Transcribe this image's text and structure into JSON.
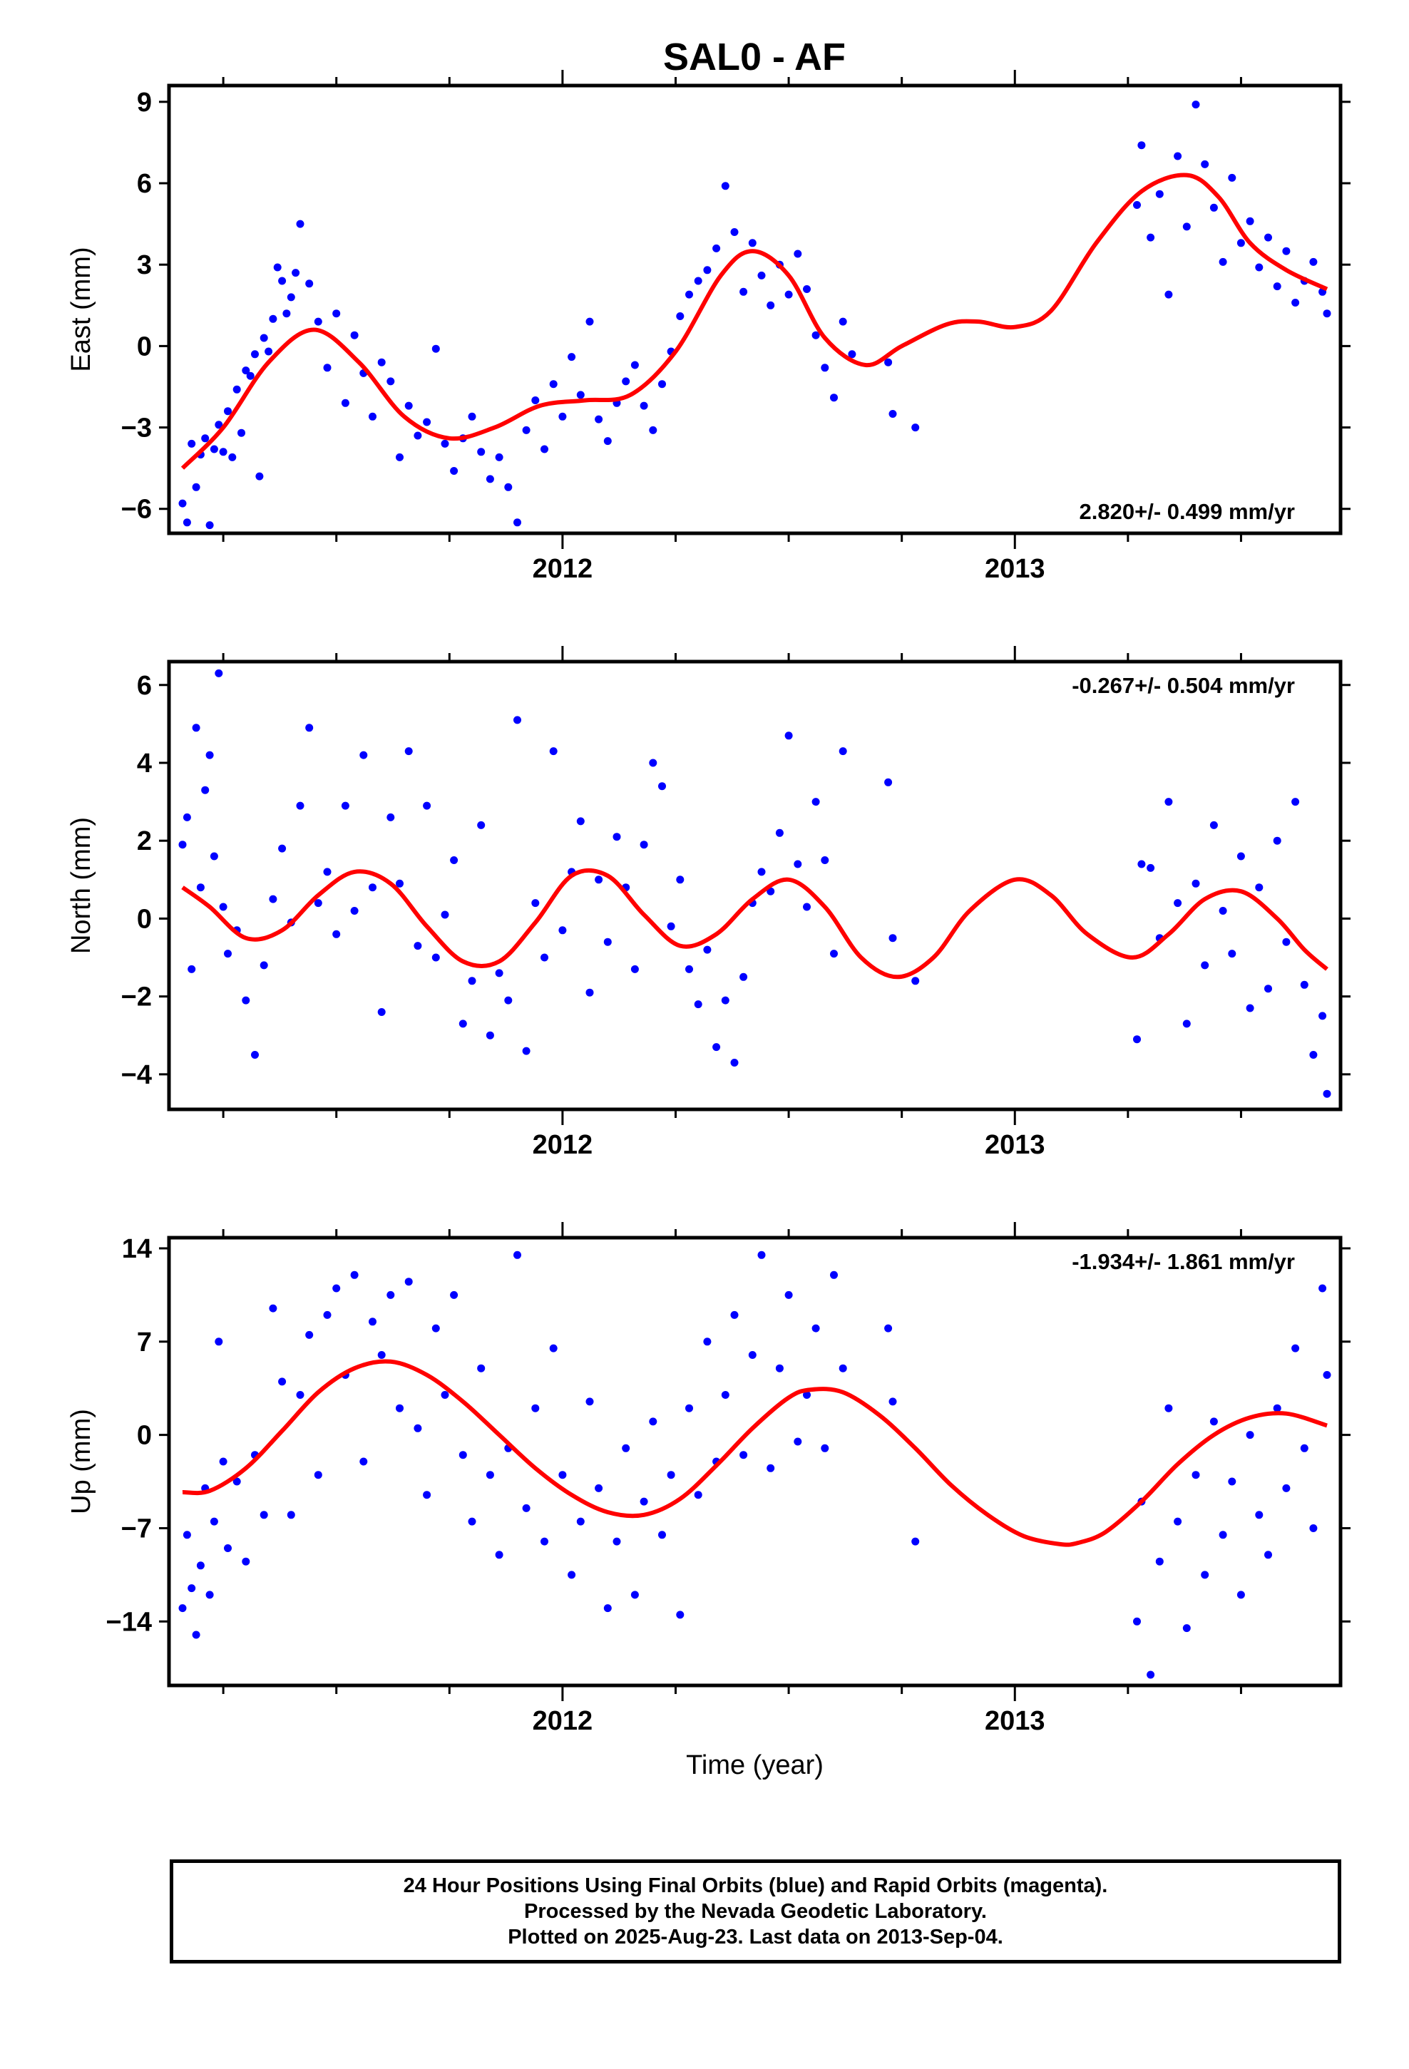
{
  "title": "SAL0 - AF",
  "footer": {
    "line1": "24 Hour Positions Using Final Orbits (blue) and Rapid Orbits (magenta).",
    "line2": "Processed by the Nevada Geodetic Laboratory.",
    "line3": "Plotted on 2025-Aug-23. Last data on 2013-Sep-04."
  },
  "colors": {
    "points": "#0000ff",
    "fit": "#ff0000",
    "axes": "#000000"
  },
  "chart_data": [
    {
      "type": "scatter",
      "ylabel": "East (mm)",
      "xlabel": "",
      "rate_label": "2.820+/- 0.499 mm/yr",
      "rate_position": "bottom-right",
      "xlim": [
        2011.13,
        2013.72
      ],
      "ylim": [
        -6.9,
        9.6
      ],
      "yticks": [
        -6,
        -3,
        0,
        3,
        6,
        9
      ],
      "xticks": [
        2012,
        2013
      ],
      "xtick_labels": [
        "2012",
        "2013"
      ],
      "grid": false,
      "series": [
        {
          "name": "Final Orbits",
          "kind": "points",
          "x": [
            2011.16,
            2011.17,
            2011.18,
            2011.19,
            2011.2,
            2011.21,
            2011.22,
            2011.23,
            2011.24,
            2011.25,
            2011.26,
            2011.27,
            2011.28,
            2011.29,
            2011.3,
            2011.31,
            2011.32,
            2011.33,
            2011.34,
            2011.35,
            2011.36,
            2011.37,
            2011.38,
            2011.39,
            2011.4,
            2011.41,
            2011.42,
            2011.44,
            2011.46,
            2011.48,
            2011.5,
            2011.52,
            2011.54,
            2011.56,
            2011.58,
            2011.6,
            2011.62,
            2011.64,
            2011.66,
            2011.68,
            2011.7,
            2011.72,
            2011.74,
            2011.76,
            2011.78,
            2011.8,
            2011.82,
            2011.84,
            2011.86,
            2011.88,
            2011.9,
            2011.92,
            2011.94,
            2011.96,
            2011.98,
            2012.0,
            2012.02,
            2012.04,
            2012.06,
            2012.08,
            2012.1,
            2012.12,
            2012.14,
            2012.16,
            2012.18,
            2012.2,
            2012.22,
            2012.24,
            2012.26,
            2012.28,
            2012.3,
            2012.32,
            2012.34,
            2012.36,
            2012.38,
            2012.4,
            2012.42,
            2012.44,
            2012.46,
            2012.48,
            2012.5,
            2012.52,
            2012.54,
            2012.56,
            2012.58,
            2012.6,
            2012.62,
            2012.64,
            2012.72,
            2012.73,
            2012.78,
            2013.27,
            2013.28,
            2013.3,
            2013.32,
            2013.34,
            2013.36,
            2013.38,
            2013.4,
            2013.42,
            2013.44,
            2013.46,
            2013.48,
            2013.5,
            2013.52,
            2013.54,
            2013.56,
            2013.58,
            2013.6,
            2013.62,
            2013.64,
            2013.66,
            2013.68,
            2013.69
          ],
          "y": [
            -5.8,
            -6.5,
            -3.6,
            -5.2,
            -4.0,
            -3.4,
            -6.6,
            -3.8,
            -2.9,
            -3.9,
            -2.4,
            -4.1,
            -1.6,
            -3.2,
            -0.9,
            -1.1,
            -0.3,
            -4.8,
            0.3,
            -0.2,
            1.0,
            2.9,
            2.4,
            1.2,
            1.8,
            2.7,
            4.5,
            2.3,
            0.9,
            -0.8,
            1.2,
            -2.1,
            0.4,
            -1.0,
            -2.6,
            -0.6,
            -1.3,
            -4.1,
            -2.2,
            -3.3,
            -2.8,
            -0.1,
            -3.6,
            -4.6,
            -3.4,
            -2.6,
            -3.9,
            -4.9,
            -4.1,
            -5.2,
            -6.5,
            -3.1,
            -2.0,
            -3.8,
            -1.4,
            -2.6,
            -0.4,
            -1.8,
            0.9,
            -2.7,
            -3.5,
            -2.1,
            -1.3,
            -0.7,
            -2.2,
            -3.1,
            -1.4,
            -0.2,
            1.1,
            1.9,
            2.4,
            2.8,
            3.6,
            5.9,
            4.2,
            2.0,
            3.8,
            2.6,
            1.5,
            3.0,
            1.9,
            3.4,
            2.1,
            0.4,
            -0.8,
            -1.9,
            0.9,
            -0.3,
            -0.6,
            -2.5,
            -3.0,
            5.2,
            7.4,
            4.0,
            5.6,
            1.9,
            7.0,
            4.4,
            8.9,
            6.7,
            5.1,
            3.1,
            6.2,
            3.8,
            4.6,
            2.9,
            4.0,
            2.2,
            3.5,
            1.6,
            2.4,
            3.1,
            2.0,
            1.2
          ]
        },
        {
          "name": "Fit",
          "kind": "line",
          "x": [
            2011.16,
            2011.25,
            2011.35,
            2011.45,
            2011.55,
            2011.65,
            2011.75,
            2011.85,
            2011.95,
            2012.05,
            2012.15,
            2012.25,
            2012.35,
            2012.42,
            2012.5,
            2012.58,
            2012.67,
            2012.75,
            2012.85,
            2012.92,
            2013.0,
            2013.08,
            2013.18,
            2013.28,
            2013.38,
            2013.45,
            2013.52,
            2013.6,
            2013.69
          ],
          "y": [
            -4.5,
            -3.0,
            -0.6,
            0.6,
            -0.6,
            -2.6,
            -3.4,
            -3.0,
            -2.2,
            -2.0,
            -1.8,
            -0.2,
            2.6,
            3.5,
            2.6,
            0.3,
            -0.7,
            0.0,
            0.8,
            0.9,
            0.7,
            1.3,
            3.8,
            5.7,
            6.3,
            5.5,
            3.8,
            2.8,
            2.1
          ]
        }
      ]
    },
    {
      "type": "scatter",
      "ylabel": "North (mm)",
      "xlabel": "",
      "rate_label": "-0.267+/- 0.504 mm/yr",
      "rate_position": "top-right",
      "xlim": [
        2011.13,
        2013.72
      ],
      "ylim": [
        -4.9,
        6.6
      ],
      "yticks": [
        -4,
        -2,
        0,
        2,
        4,
        6
      ],
      "xticks": [
        2012,
        2013
      ],
      "xtick_labels": [
        "2012",
        "2013"
      ],
      "grid": false,
      "series": [
        {
          "name": "Final Orbits",
          "kind": "points",
          "x": [
            2011.16,
            2011.17,
            2011.18,
            2011.19,
            2011.2,
            2011.21,
            2011.22,
            2011.23,
            2011.24,
            2011.25,
            2011.26,
            2011.28,
            2011.3,
            2011.32,
            2011.34,
            2011.36,
            2011.38,
            2011.4,
            2011.42,
            2011.44,
            2011.46,
            2011.48,
            2011.5,
            2011.52,
            2011.54,
            2011.56,
            2011.58,
            2011.6,
            2011.62,
            2011.64,
            2011.66,
            2011.68,
            2011.7,
            2011.72,
            2011.74,
            2011.76,
            2011.78,
            2011.8,
            2011.82,
            2011.84,
            2011.86,
            2011.88,
            2011.9,
            2011.92,
            2011.94,
            2011.96,
            2011.98,
            2012.0,
            2012.02,
            2012.04,
            2012.06,
            2012.08,
            2012.1,
            2012.12,
            2012.14,
            2012.16,
            2012.18,
            2012.2,
            2012.22,
            2012.24,
            2012.26,
            2012.28,
            2012.3,
            2012.32,
            2012.34,
            2012.36,
            2012.38,
            2012.4,
            2012.42,
            2012.44,
            2012.46,
            2012.48,
            2012.5,
            2012.52,
            2012.54,
            2012.56,
            2012.58,
            2012.6,
            2012.62,
            2012.72,
            2012.73,
            2012.78,
            2013.27,
            2013.28,
            2013.3,
            2013.32,
            2013.34,
            2013.36,
            2013.38,
            2013.4,
            2013.42,
            2013.44,
            2013.46,
            2013.48,
            2013.5,
            2013.52,
            2013.54,
            2013.56,
            2013.58,
            2013.6,
            2013.62,
            2013.64,
            2013.66,
            2013.68,
            2013.69
          ],
          "y": [
            1.9,
            2.6,
            -1.3,
            4.9,
            0.8,
            3.3,
            4.2,
            1.6,
            6.3,
            0.3,
            -0.9,
            -0.3,
            -2.1,
            -3.5,
            -1.2,
            0.5,
            1.8,
            -0.1,
            2.9,
            4.9,
            0.4,
            1.2,
            -0.4,
            2.9,
            0.2,
            4.2,
            0.8,
            -2.4,
            2.6,
            0.9,
            4.3,
            -0.7,
            2.9,
            -1.0,
            0.1,
            1.5,
            -2.7,
            -1.6,
            2.4,
            -3.0,
            -1.4,
            -2.1,
            5.1,
            -3.4,
            0.4,
            -1.0,
            4.3,
            -0.3,
            1.2,
            2.5,
            -1.9,
            1.0,
            -0.6,
            2.1,
            0.8,
            -1.3,
            1.9,
            4.0,
            3.4,
            -0.2,
            1.0,
            -1.3,
            -2.2,
            -0.8,
            -3.3,
            -2.1,
            -3.7,
            -1.5,
            0.4,
            1.2,
            0.7,
            2.2,
            4.7,
            1.4,
            0.3,
            3.0,
            1.5,
            -0.9,
            4.3,
            3.5,
            -0.5,
            -1.6,
            -3.1,
            1.4,
            1.3,
            -0.5,
            3.0,
            0.4,
            -2.7,
            0.9,
            -1.2,
            2.4,
            0.2,
            -0.9,
            1.6,
            -2.3,
            0.8,
            -1.8,
            2.0,
            -0.6,
            3.0,
            -1.7,
            -3.5,
            -2.5,
            -4.5
          ]
        },
        {
          "name": "Fit",
          "kind": "line",
          "x": [
            2011.16,
            2011.22,
            2011.3,
            2011.38,
            2011.46,
            2011.54,
            2011.62,
            2011.7,
            2011.78,
            2011.86,
            2011.94,
            2012.02,
            2012.1,
            2012.18,
            2012.26,
            2012.34,
            2012.42,
            2012.5,
            2012.58,
            2012.66,
            2012.74,
            2012.82,
            2012.9,
            2013.0,
            2013.08,
            2013.16,
            2013.26,
            2013.34,
            2013.42,
            2013.5,
            2013.58,
            2013.64,
            2013.69
          ],
          "y": [
            0.8,
            0.3,
            -0.5,
            -0.3,
            0.6,
            1.2,
            0.9,
            -0.2,
            -1.1,
            -1.1,
            -0.1,
            1.1,
            1.1,
            0.1,
            -0.7,
            -0.4,
            0.5,
            1.0,
            0.3,
            -1.0,
            -1.5,
            -1.0,
            0.2,
            1.0,
            0.6,
            -0.4,
            -1.0,
            -0.4,
            0.5,
            0.7,
            0.0,
            -0.8,
            -1.3
          ]
        }
      ]
    },
    {
      "type": "scatter",
      "ylabel": "Up (mm)",
      "xlabel": "Time (year)",
      "rate_label": "-1.934+/- 1.861 mm/yr",
      "rate_position": "top-right",
      "xlim": [
        2011.13,
        2013.72
      ],
      "ylim": [
        -18.8,
        14.8
      ],
      "yticks": [
        -14,
        -7,
        0,
        7,
        14
      ],
      "xticks": [
        2012,
        2013
      ],
      "xtick_labels": [
        "2012",
        "2013"
      ],
      "grid": false,
      "series": [
        {
          "name": "Final Orbits",
          "kind": "points",
          "x": [
            2011.16,
            2011.17,
            2011.18,
            2011.19,
            2011.2,
            2011.21,
            2011.22,
            2011.23,
            2011.24,
            2011.25,
            2011.26,
            2011.28,
            2011.3,
            2011.32,
            2011.34,
            2011.36,
            2011.38,
            2011.4,
            2011.42,
            2011.44,
            2011.46,
            2011.48,
            2011.5,
            2011.52,
            2011.54,
            2011.56,
            2011.58,
            2011.6,
            2011.62,
            2011.64,
            2011.66,
            2011.68,
            2011.7,
            2011.72,
            2011.74,
            2011.76,
            2011.78,
            2011.8,
            2011.82,
            2011.84,
            2011.86,
            2011.88,
            2011.9,
            2011.92,
            2011.94,
            2011.96,
            2011.98,
            2012.0,
            2012.02,
            2012.04,
            2012.06,
            2012.08,
            2012.1,
            2012.12,
            2012.14,
            2012.16,
            2012.18,
            2012.2,
            2012.22,
            2012.24,
            2012.26,
            2012.28,
            2012.3,
            2012.32,
            2012.34,
            2012.36,
            2012.38,
            2012.4,
            2012.42,
            2012.44,
            2012.46,
            2012.48,
            2012.5,
            2012.52,
            2012.54,
            2012.56,
            2012.58,
            2012.6,
            2012.62,
            2012.72,
            2012.73,
            2012.78,
            2013.27,
            2013.28,
            2013.3,
            2013.32,
            2013.34,
            2013.36,
            2013.38,
            2013.4,
            2013.42,
            2013.44,
            2013.46,
            2013.48,
            2013.5,
            2013.52,
            2013.54,
            2013.56,
            2013.58,
            2013.6,
            2013.62,
            2013.64,
            2013.66,
            2013.68,
            2013.69
          ],
          "y": [
            -13.0,
            -7.5,
            -11.5,
            -15.0,
            -9.8,
            -4.0,
            -12.0,
            -6.5,
            7.0,
            -2.0,
            -8.5,
            -3.5,
            -9.5,
            -1.5,
            -6.0,
            9.5,
            4.0,
            -6.0,
            3.0,
            7.5,
            -3.0,
            9.0,
            11.0,
            4.5,
            12.0,
            -2.0,
            8.5,
            6.0,
            10.5,
            2.0,
            11.5,
            0.5,
            -4.5,
            8.0,
            3.0,
            10.5,
            -1.5,
            -6.5,
            5.0,
            -3.0,
            -9.0,
            -1.0,
            13.5,
            -5.5,
            2.0,
            -8.0,
            6.5,
            -3.0,
            -10.5,
            -6.5,
            2.5,
            -4.0,
            -13.0,
            -8.0,
            -1.0,
            -12.0,
            -5.0,
            1.0,
            -7.5,
            -3.0,
            -13.5,
            2.0,
            -4.5,
            7.0,
            -2.0,
            3.0,
            9.0,
            -1.5,
            6.0,
            13.5,
            -2.5,
            5.0,
            10.5,
            -0.5,
            3.0,
            8.0,
            -1.0,
            12.0,
            5.0,
            8.0,
            2.5,
            -8.0,
            -14.0,
            -5.0,
            -18.0,
            -9.5,
            2.0,
            -6.5,
            -14.5,
            -3.0,
            -10.5,
            1.0,
            -7.5,
            -3.5,
            -12.0,
            0.0,
            -6.0,
            -9.0,
            2.0,
            -4.0,
            6.5,
            -1.0,
            -7.0,
            11.0,
            4.5
          ]
        },
        {
          "name": "Fit",
          "kind": "line",
          "x": [
            2011.16,
            2011.22,
            2011.3,
            2011.38,
            2011.46,
            2011.54,
            2011.62,
            2011.7,
            2011.78,
            2011.86,
            2011.94,
            2012.02,
            2012.1,
            2012.18,
            2012.26,
            2012.34,
            2012.42,
            2012.5,
            2012.55,
            2012.62,
            2012.7,
            2012.78,
            2012.86,
            2012.94,
            2013.02,
            2013.1,
            2013.14,
            2013.2,
            2013.28,
            2013.36,
            2013.44,
            2013.52,
            2013.6,
            2013.69
          ],
          "y": [
            -4.3,
            -4.2,
            -2.5,
            0.3,
            3.2,
            5.0,
            5.5,
            4.5,
            2.5,
            0.0,
            -2.5,
            -4.5,
            -5.8,
            -6.0,
            -4.8,
            -2.3,
            0.5,
            2.8,
            3.4,
            3.2,
            1.5,
            -1.0,
            -3.8,
            -6.0,
            -7.6,
            -8.2,
            -8.1,
            -7.3,
            -5.0,
            -2.2,
            0.0,
            1.3,
            1.6,
            0.7
          ]
        }
      ]
    }
  ]
}
